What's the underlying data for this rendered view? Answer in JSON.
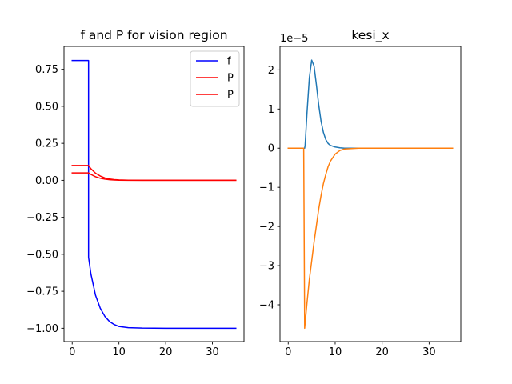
{
  "figure": {
    "background": "#ffffff"
  },
  "chart_data": [
    {
      "type": "line",
      "title": "f and P for vision region",
      "xlabel": "",
      "ylabel": "",
      "xlim": [
        -1.75,
        36.75
      ],
      "ylim": [
        -1.09,
        0.905
      ],
      "xticks": [
        0,
        10,
        20,
        30
      ],
      "xtick_labels": [
        "0",
        "10",
        "20",
        "30"
      ],
      "yticks": [
        0.75,
        0.5,
        0.25,
        0.0,
        -0.25,
        -0.5,
        -0.75,
        -1.0
      ],
      "ytick_labels": [
        "0.75",
        "0.50",
        "0.25",
        "0.00",
        "−0.25",
        "−0.50",
        "−0.75",
        "−1.00"
      ],
      "grid": false,
      "legend": {
        "placement": "top-right",
        "entries": [
          "f",
          "P",
          "P"
        ]
      },
      "series": [
        {
          "name": "f",
          "color": "#0000ff",
          "x": [
            0,
            3.5,
            3.5,
            3.5,
            4,
            5,
            6,
            7,
            8,
            9,
            10,
            12,
            15,
            20,
            25,
            30,
            35
          ],
          "y": [
            0.81,
            0.81,
            0.5,
            -0.52,
            -0.632,
            -0.778,
            -0.864,
            -0.92,
            -0.955,
            -0.975,
            -0.988,
            -0.996,
            -0.999,
            -1.0,
            -1.0,
            -1.0,
            -1.0
          ]
        },
        {
          "name": "P",
          "color": "#ff0000",
          "x": [
            0,
            3.5,
            4,
            5,
            6,
            7,
            8,
            9,
            10,
            12,
            15,
            20,
            25,
            30,
            35
          ],
          "y": [
            0.1,
            0.1,
            0.078,
            0.048,
            0.029,
            0.016,
            0.009,
            0.005,
            0.003,
            0.001,
            0.0,
            0.0,
            0.0,
            0.0,
            0.0
          ]
        },
        {
          "name": "P",
          "color": "#ff0000",
          "x": [
            0,
            3.5,
            4,
            5,
            6,
            7,
            8,
            9,
            10,
            12,
            15,
            20,
            25,
            30,
            35
          ],
          "y": [
            0.05,
            0.05,
            0.04,
            0.024,
            0.014,
            0.008,
            0.004,
            0.002,
            0.001,
            0.0,
            0.0,
            0.0,
            0.0,
            0.0,
            0.0
          ]
        }
      ]
    },
    {
      "type": "line",
      "title": "kesi_x",
      "xlabel": "",
      "ylabel": "",
      "offset_label": "1e−5",
      "xlim": [
        -1.75,
        36.75
      ],
      "ylim": [
        -4.94,
        2.6
      ],
      "xticks": [
        0,
        10,
        20,
        30
      ],
      "xtick_labels": [
        "0",
        "10",
        "20",
        "30"
      ],
      "yticks": [
        2,
        1,
        0,
        -1,
        -2,
        -3,
        -4
      ],
      "ytick_labels": [
        "2",
        "1",
        "0",
        "−1",
        "−2",
        "−3",
        "−4"
      ],
      "grid": false,
      "legend": null,
      "series": [
        {
          "color": "#1f77b4",
          "x": [
            0,
            3.5,
            3.6,
            4.0,
            4.5,
            5.0,
            5.5,
            6.0,
            6.5,
            7.0,
            7.5,
            8.0,
            8.5,
            9.0,
            10.0,
            11.0,
            12.0,
            14.0,
            20,
            35
          ],
          "y": [
            0,
            0,
            0.08,
            0.9,
            1.8,
            2.25,
            2.1,
            1.62,
            1.1,
            0.68,
            0.4,
            0.22,
            0.12,
            0.07,
            0.03,
            0.01,
            0.0,
            0.0,
            0.0,
            0.0
          ]
        },
        {
          "color": "#ff7f0e",
          "x": [
            0,
            3.3,
            3.5,
            4.0,
            4.5,
            5.0,
            5.5,
            6.0,
            6.5,
            7.0,
            7.5,
            8.0,
            8.5,
            9.0,
            10.0,
            11.0,
            12.0,
            15.0,
            20,
            35
          ],
          "y": [
            0,
            0,
            -4.6,
            -3.95,
            -3.35,
            -2.88,
            -2.4,
            -1.98,
            -1.55,
            -1.2,
            -0.9,
            -0.67,
            -0.47,
            -0.33,
            -0.15,
            -0.06,
            -0.02,
            0.0,
            0.0,
            0.0
          ]
        }
      ]
    }
  ]
}
